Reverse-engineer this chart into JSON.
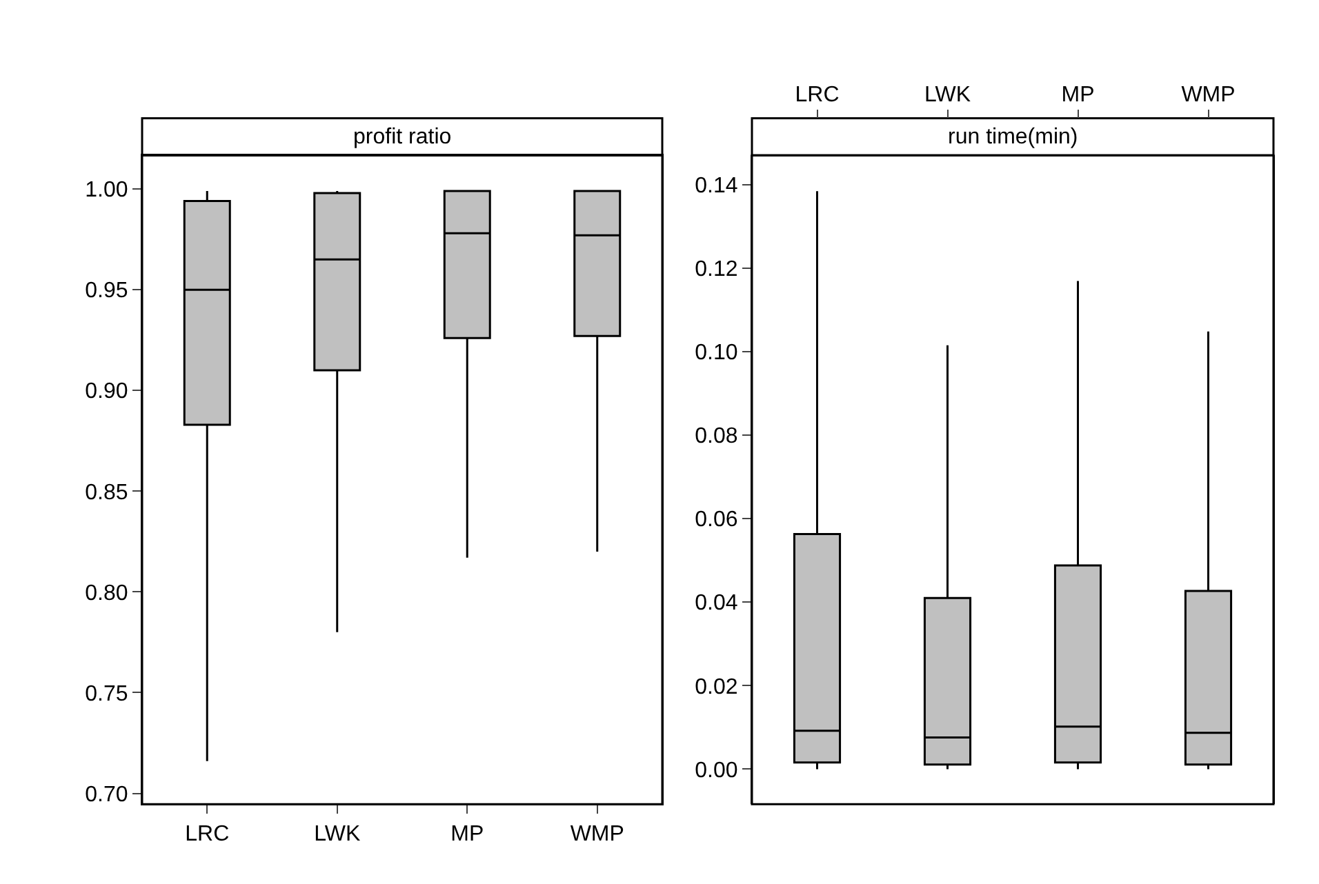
{
  "chart_data": [
    {
      "type": "box",
      "title": "profit ratio",
      "categories": [
        "LRC",
        "LWK",
        "MP",
        "WMP"
      ],
      "boxes": [
        {
          "low": 0.716,
          "q1": 0.883,
          "median": 0.95,
          "q3": 0.994,
          "high": 0.999
        },
        {
          "low": 0.78,
          "q1": 0.91,
          "median": 0.965,
          "q3": 0.998,
          "high": 0.999
        },
        {
          "low": 0.817,
          "q1": 0.926,
          "median": 0.978,
          "q3": 0.999,
          "high": 0.999
        },
        {
          "low": 0.82,
          "q1": 0.927,
          "median": 0.977,
          "q3": 0.999,
          "high": 0.999
        }
      ],
      "color": "#c0c0c0",
      "ylim": [
        0.6946,
        1.0167
      ],
      "yticks": [
        {
          "value": 0.7,
          "label": "0.70"
        },
        {
          "value": 0.75,
          "label": "0.75"
        },
        {
          "value": 0.8,
          "label": "0.80"
        },
        {
          "value": 0.85,
          "label": "0.85"
        },
        {
          "value": 0.9,
          "label": "0.90"
        },
        {
          "value": 0.95,
          "label": "0.95"
        },
        {
          "value": 1.0,
          "label": "1.00"
        }
      ]
    },
    {
      "type": "box",
      "title": "run time(min)",
      "categories": [
        "LRC",
        "LWK",
        "MP",
        "WMP"
      ],
      "boxes": [
        {
          "low": 0.0,
          "q1": 0.0016,
          "median": 0.0092,
          "q3": 0.0563,
          "high": 0.1384
        },
        {
          "low": 0.0,
          "q1": 0.0011,
          "median": 0.0076,
          "q3": 0.041,
          "high": 0.1015
        },
        {
          "low": 0.0,
          "q1": 0.0016,
          "median": 0.0102,
          "q3": 0.0488,
          "high": 0.1169
        },
        {
          "low": 0.0,
          "q1": 0.0011,
          "median": 0.0087,
          "q3": 0.0427,
          "high": 0.1048
        }
      ],
      "color": "#c0c0c0",
      "ylim": [
        -0.0084,
        0.147
      ],
      "yticks": [
        {
          "value": 0.0,
          "label": "0.00"
        },
        {
          "value": 0.02,
          "label": "0.02"
        },
        {
          "value": 0.04,
          "label": "0.04"
        },
        {
          "value": 0.06,
          "label": "0.06"
        },
        {
          "value": 0.08,
          "label": "0.08"
        },
        {
          "value": 0.1,
          "label": "0.10"
        },
        {
          "value": 0.12,
          "label": "0.12"
        },
        {
          "value": 0.14,
          "label": "0.14"
        }
      ]
    }
  ]
}
